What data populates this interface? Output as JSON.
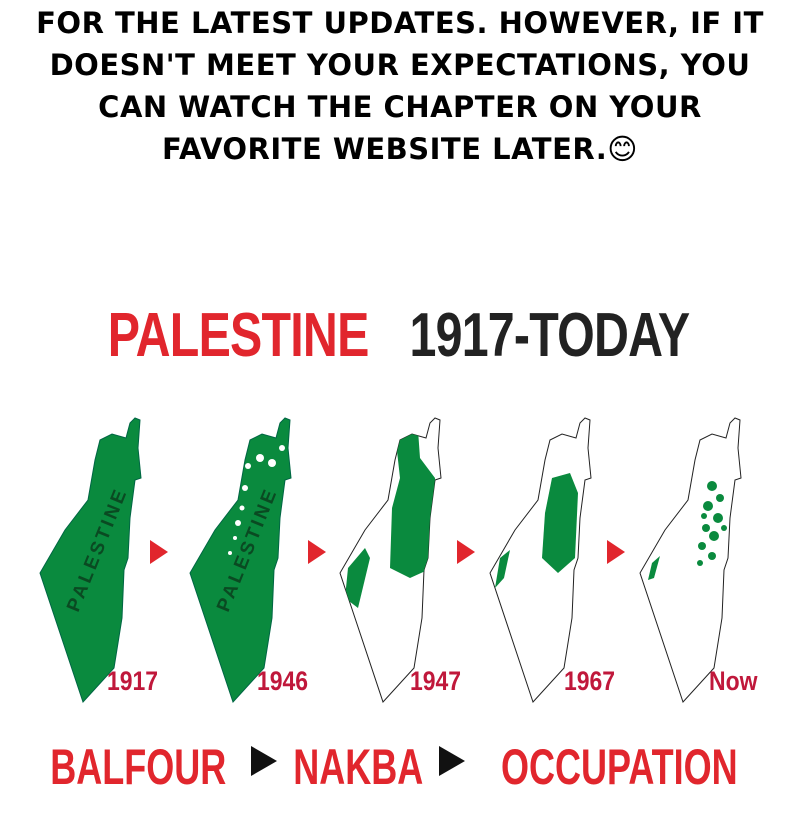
{
  "caption": {
    "lines": [
      "FOR THE LATEST UPDATES. HOWEVER, IF IT",
      "DOESN'T MEET YOUR EXPECTATIONS, YOU",
      "CAN WATCH THE CHAPTER ON YOUR",
      "FAVORITE WEBSITE LATER.😊"
    ]
  },
  "infographic": {
    "title_red": "PALESTINE",
    "title_dark": "1917-TODAY",
    "map_label": "PALESTINE",
    "years": [
      "1917",
      "1946",
      "1947",
      "1967",
      "Now"
    ],
    "bottom": [
      "BALFOUR",
      "NAKBA",
      "OCCUPATION"
    ],
    "colors": {
      "green": "#0a8a3e",
      "red": "#e1262d",
      "year": "#c0183b"
    }
  }
}
